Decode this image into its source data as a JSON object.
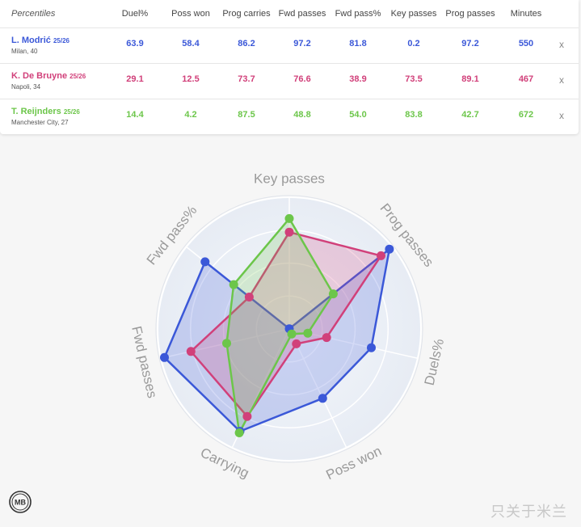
{
  "table": {
    "header": {
      "percentiles": "Percentiles",
      "columns": [
        "Duel%",
        "Poss won",
        "Prog carries",
        "Fwd passes",
        "Fwd pass%",
        "Key passes",
        "Prog passes",
        "Minutes"
      ]
    },
    "players": [
      {
        "name": "L. Modrić",
        "season": "25/26",
        "club_age": "Milan, 40",
        "color": "#3b58d8",
        "values": [
          "63.9",
          "58.4",
          "86.2",
          "97.2",
          "81.8",
          "0.2",
          "97.2",
          "550"
        ],
        "remove_label": "x"
      },
      {
        "name": "K. De Bruyne",
        "season": "25/26",
        "club_age": "Napoli, 34",
        "color": "#d1407a",
        "values": [
          "29.1",
          "12.5",
          "73.7",
          "76.6",
          "38.9",
          "73.5",
          "89.1",
          "467"
        ],
        "remove_label": "x"
      },
      {
        "name": "T. Reijnders",
        "season": "25/26",
        "club_age": "Manchester City, 27",
        "color": "#6cc64a",
        "values": [
          "14.4",
          "4.2",
          "87.5",
          "48.8",
          "54.0",
          "83.8",
          "42.7",
          "672"
        ],
        "remove_label": "x"
      }
    ]
  },
  "chart_data": {
    "type": "radar",
    "axes": [
      "Key passes",
      "Prog passes",
      "Duels%",
      "Poss won",
      "Carrying",
      "Fwd passes",
      "Fwd pass%"
    ],
    "range": [
      0,
      100
    ],
    "series": [
      {
        "name": "L. Modrić",
        "color": "#3b58d8",
        "values": [
          0.2,
          97.2,
          63.9,
          58.4,
          86.2,
          97.2,
          81.8
        ]
      },
      {
        "name": "K. De Bruyne",
        "color": "#d1407a",
        "values": [
          73.5,
          89.1,
          29.1,
          12.5,
          73.7,
          76.6,
          38.9
        ]
      },
      {
        "name": "T. Reijnders",
        "color": "#6cc64a",
        "values": [
          83.8,
          42.7,
          14.4,
          4.2,
          87.5,
          48.8,
          54.0
        ]
      }
    ]
  },
  "logo_text": "MB",
  "watermark": "只关于米兰"
}
